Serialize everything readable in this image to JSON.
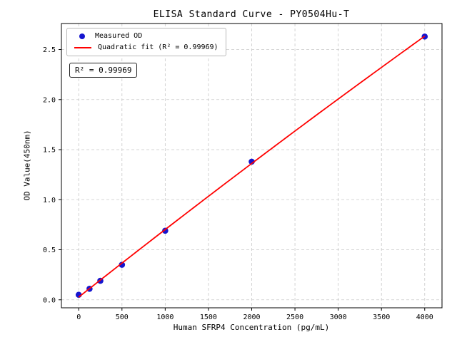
{
  "chart_data": {
    "type": "scatter",
    "title": "ELISA Standard Curve - PY0504Hu-T",
    "xlabel": "Human SFRP4 Concentration (pg/mL)",
    "ylabel": "OD Value(450nm)",
    "xlim": [
      -200,
      4200
    ],
    "ylim": [
      -0.08,
      2.76
    ],
    "xticks": [
      0,
      500,
      1000,
      1500,
      2000,
      2500,
      3000,
      3500,
      4000
    ],
    "yticks": [
      0.0,
      0.5,
      1.0,
      1.5,
      2.0,
      2.5
    ],
    "grid": true,
    "legend_position": "upper-left",
    "series": [
      {
        "name": "Measured OD",
        "type": "scatter",
        "x": [
          0,
          125,
          250,
          500,
          1000,
          2000,
          4000
        ],
        "y": [
          0.05,
          0.11,
          0.19,
          0.35,
          0.69,
          1.38,
          2.63
        ]
      },
      {
        "name": "Quadratic fit (R² = 0.99969)",
        "type": "quadratic-fit-line",
        "x_range": [
          0,
          4000
        ]
      }
    ]
  },
  "legend": {
    "items": [
      {
        "label": "Measured OD",
        "marker": "dot"
      },
      {
        "label": "Quadratic fit (R² = 0.99969)",
        "marker": "line"
      }
    ]
  },
  "annotation": {
    "text": "R² = 0.99969"
  },
  "colors": {
    "point": "#1515cf",
    "line": "#ff0000",
    "grid": "#c9c9c9",
    "spine": "#000000"
  }
}
